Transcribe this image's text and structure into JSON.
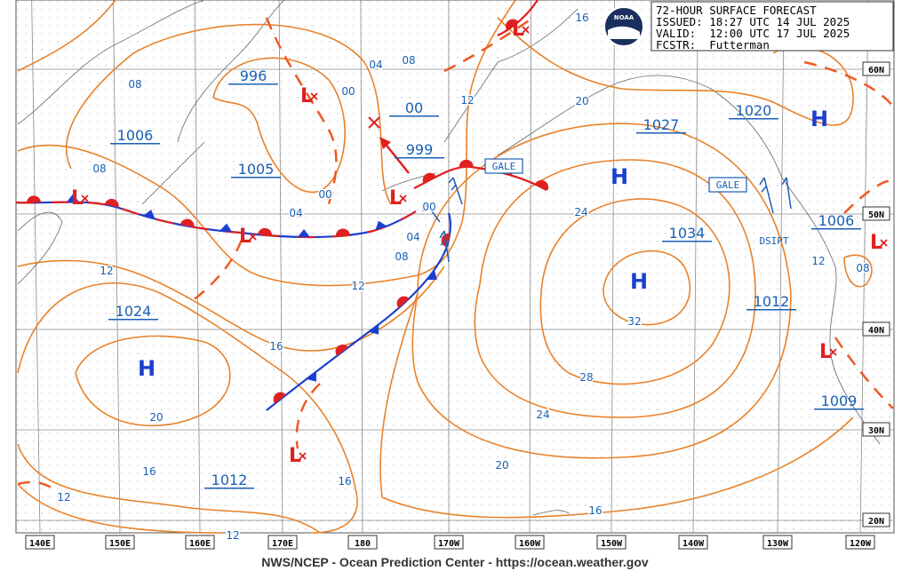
{
  "header": {
    "title": "72-HOUR SURFACE FORECAST",
    "issued": "ISSUED: 18:27 UTC 14 JUL 2025",
    "valid": "VALID:  12:00 UTC 17 JUL 2025",
    "forecaster": "FCSTR:  Futterman"
  },
  "logo": "NOAA",
  "footer": "NWS/NCEP - Ocean Prediction Center - https://ocean.weather.gov",
  "longitude_labels": [
    "140E",
    "150E",
    "160E",
    "170E",
    "180",
    "170W",
    "160W",
    "150W",
    "140W",
    "130W",
    "120W"
  ],
  "latitude_labels": [
    "60N",
    "50N",
    "40N",
    "30N",
    "20N"
  ],
  "pressure_labels": [
    "996",
    "1006",
    "1005",
    "00",
    "999",
    "1027",
    "1020",
    "1034",
    "1006",
    "1012",
    "1024",
    "1012",
    "1009"
  ],
  "highs": [
    "H",
    "H",
    "H",
    "H"
  ],
  "lows": [
    "L",
    "L",
    "L",
    "L",
    "L",
    "L",
    "L",
    "L"
  ],
  "isobar_labels": [
    "16",
    "08",
    "04",
    "00",
    "08",
    "08",
    "00",
    "12",
    "20",
    "04",
    "00",
    "04",
    "08",
    "24",
    "12",
    "12",
    "16",
    "20",
    "32",
    "28",
    "24",
    "20",
    "16",
    "16",
    "12",
    "12",
    "16",
    "12",
    "08"
  ],
  "warnings": [
    "GALE",
    "GALE",
    "DSIPT"
  ]
}
